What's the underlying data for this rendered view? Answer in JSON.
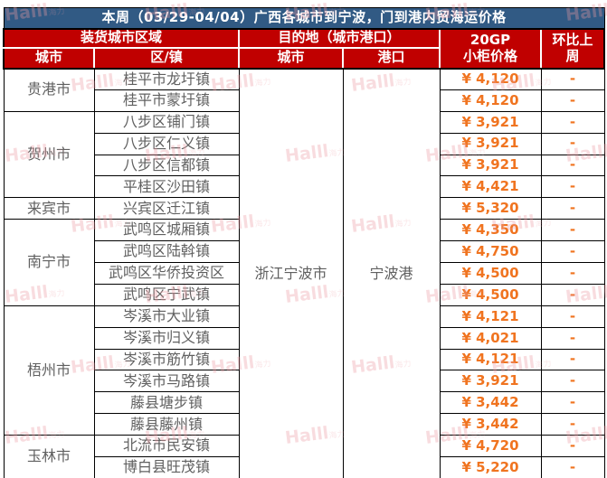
{
  "title": "本周（03/29-04/04）广西各城市到宁波，门到港内贸海运价格",
  "header": {
    "loading_region": "装货城市区域",
    "destination_group": "目的地（城市港口）",
    "price_line1": "20GP",
    "price_line2": "小柜价格",
    "wow_line1": "环比上",
    "wow_line2": "周",
    "sub_city": "城市",
    "sub_district": "区/镇",
    "sub_dest_city": "城市",
    "sub_port": "港口"
  },
  "destination": {
    "city": "浙江宁波市",
    "port": "宁波港"
  },
  "city_groups": [
    {
      "city": "贵港市",
      "rows": [
        {
          "town": "桂平市龙圩镇",
          "price": "¥ 4,120",
          "wow": "-"
        },
        {
          "town": "桂平市蒙圩镇",
          "price": "¥ 4,120",
          "wow": "-"
        }
      ]
    },
    {
      "city": "贺州市",
      "rows": [
        {
          "town": "八步区铺门镇",
          "price": "¥ 3,921",
          "wow": "-"
        },
        {
          "town": "八步区仁义镇",
          "price": "¥ 3,921",
          "wow": "-"
        },
        {
          "town": "八步区信都镇",
          "price": "¥ 3,921",
          "wow": "-"
        },
        {
          "town": "平桂区沙田镇",
          "price": "¥ 4,421",
          "wow": "-"
        }
      ]
    },
    {
      "city": "来宾市",
      "rows": [
        {
          "town": "兴宾区迁江镇",
          "price": "¥ 5,320",
          "wow": "-"
        }
      ]
    },
    {
      "city": "南宁市",
      "rows": [
        {
          "town": "武鸣区城厢镇",
          "price": "¥ 4,350",
          "wow": "-"
        },
        {
          "town": "武鸣区陆斡镇",
          "price": "¥ 4,750",
          "wow": "-"
        },
        {
          "town": "武鸣区华侨投资区",
          "price": "¥ 4,500",
          "wow": "-"
        },
        {
          "town": "武鸣区宁武镇",
          "price": "¥ 4,500",
          "wow": "-"
        }
      ]
    },
    {
      "city": "梧州市",
      "rows": [
        {
          "town": "岑溪市大业镇",
          "price": "¥ 4,121",
          "wow": "-"
        },
        {
          "town": "岑溪市归义镇",
          "price": "¥ 4,021",
          "wow": "-"
        },
        {
          "town": "岑溪市筋竹镇",
          "price": "¥ 4,121",
          "wow": "-"
        },
        {
          "town": "岑溪市马路镇",
          "price": "¥ 3,921",
          "wow": "-"
        },
        {
          "town": "藤县塘步镇",
          "price": "¥ 3,442",
          "wow": "-"
        },
        {
          "town": "藤县藤州镇",
          "price": "¥ 3,442",
          "wow": "-"
        }
      ]
    },
    {
      "city": "玉林市",
      "rows": [
        {
          "town": "北流市民安镇",
          "price": "¥ 4,720",
          "wow": "-"
        },
        {
          "town": "博白县旺茂镇",
          "price": "¥ 5,220",
          "wow": "-"
        }
      ]
    }
  ],
  "watermark": {
    "text": "Halll",
    "suffix": "海力"
  },
  "colors": {
    "title_bg": "#315A84",
    "header_bg": "#C00000",
    "header_text": "#FFFFFF",
    "price_text": "#F07420",
    "body_text": "#606060",
    "grid": "#000000",
    "watermark": "#ED9AA2"
  }
}
